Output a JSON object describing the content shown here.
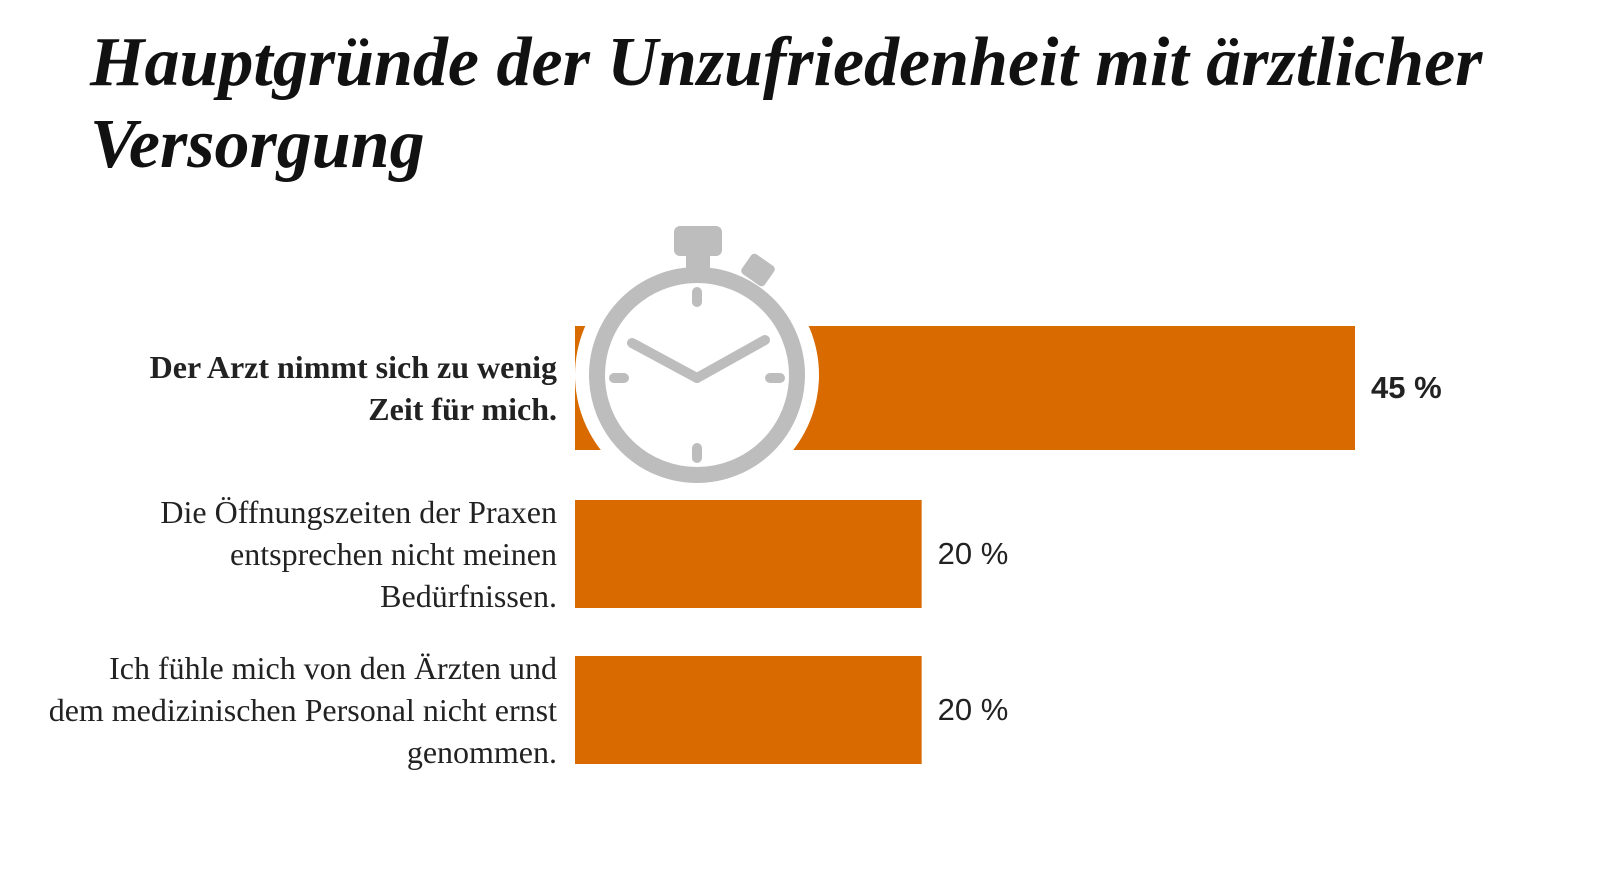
{
  "chart_data": {
    "type": "bar",
    "orientation": "horizontal",
    "title": "Hauptgründe der Unzufriedenheit mit ärztlicher Versorgung",
    "categories": [
      "Der Arzt nimmt sich zu wenig Zeit für mich.",
      "Die Öffnungszeiten der Praxen entsprechen nicht meinen Bedürfnissen.",
      "Ich fühle mich von den Ärzten und dem medizinischen Personal nicht ernst genommen."
    ],
    "values": [
      45,
      20,
      20
    ],
    "value_labels": [
      "45 %",
      "20 %",
      "20 %"
    ],
    "color": "#d96a00"
  }
}
